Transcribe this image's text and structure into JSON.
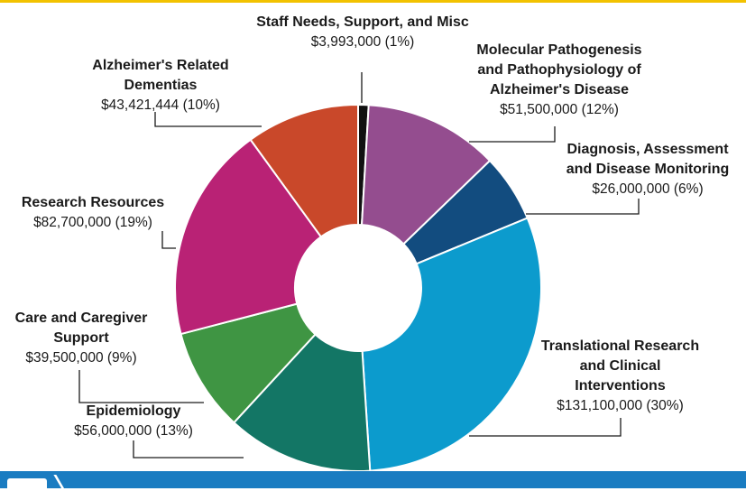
{
  "chart_data": {
    "type": "pie",
    "variant": "donut",
    "legend": "none",
    "slices": [
      {
        "label": "Staff Needs, Support, and Misc",
        "amount_text": "$3,993,000 (1%)",
        "value": 3993000,
        "percent": 1,
        "color": "#111111"
      },
      {
        "label": "Molecular Pathogenesis\nand Pathophysiology of\nAlzheimer's Disease",
        "amount_text": "$51,500,000 (12%)",
        "value": 51500000,
        "percent": 12,
        "color": "#944d8f"
      },
      {
        "label": "Diagnosis, Assessment\nand Disease Monitoring",
        "amount_text": "$26,000,000 (6%)",
        "value": 26000000,
        "percent": 6,
        "color": "#124c7f"
      },
      {
        "label": "Translational Research\nand Clinical\nInterventions",
        "amount_text": "$131,100,000 (30%)",
        "value": 131100000,
        "percent": 30,
        "color": "#0c9bcd"
      },
      {
        "label": "Epidemiology",
        "amount_text": "$56,000,000 (13%)",
        "value": 56000000,
        "percent": 13,
        "color": "#137665"
      },
      {
        "label": "Care and Caregiver\nSupport",
        "amount_text": "$39,500,000 (9%)",
        "value": 39500000,
        "percent": 9,
        "color": "#3f9543"
      },
      {
        "label": "Research Resources",
        "amount_text": "$82,700,000 (19%)",
        "value": 82700000,
        "percent": 19,
        "color": "#b92275"
      },
      {
        "label": "Alzheimer's Related\nDementias",
        "amount_text": "$43,421,444 (10%)",
        "value": 43421444,
        "percent": 10,
        "color": "#c9482a"
      }
    ]
  }
}
